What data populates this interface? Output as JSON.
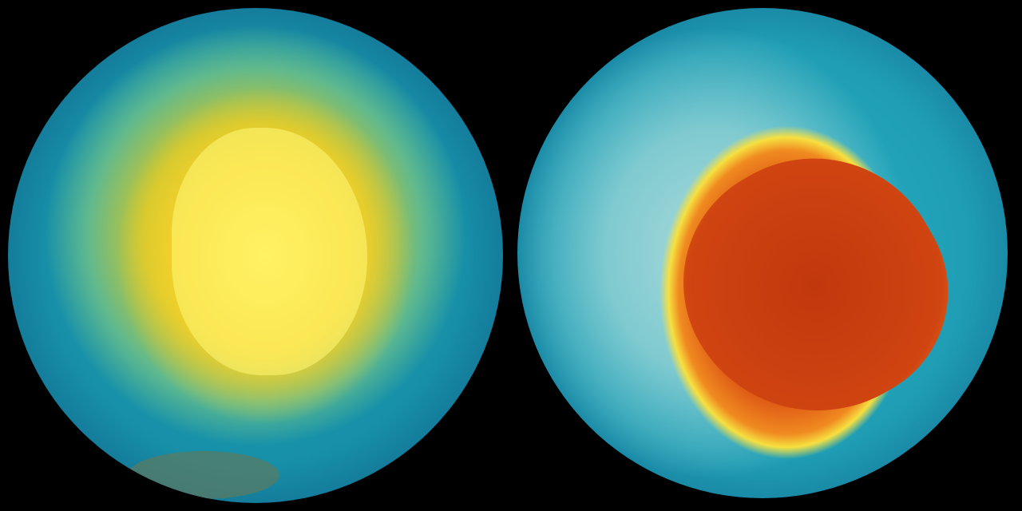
{
  "panels": [
    {
      "id": "left-globe",
      "colors": {
        "ocean": "#178fa8",
        "center": "#ffe84a",
        "ring": "#c9c630"
      }
    },
    {
      "id": "right-globe",
      "colors": {
        "ocean": "#1f9db4",
        "center": "#c53a10",
        "ring": "#f6e040",
        "land": "#a9dada"
      }
    }
  ]
}
